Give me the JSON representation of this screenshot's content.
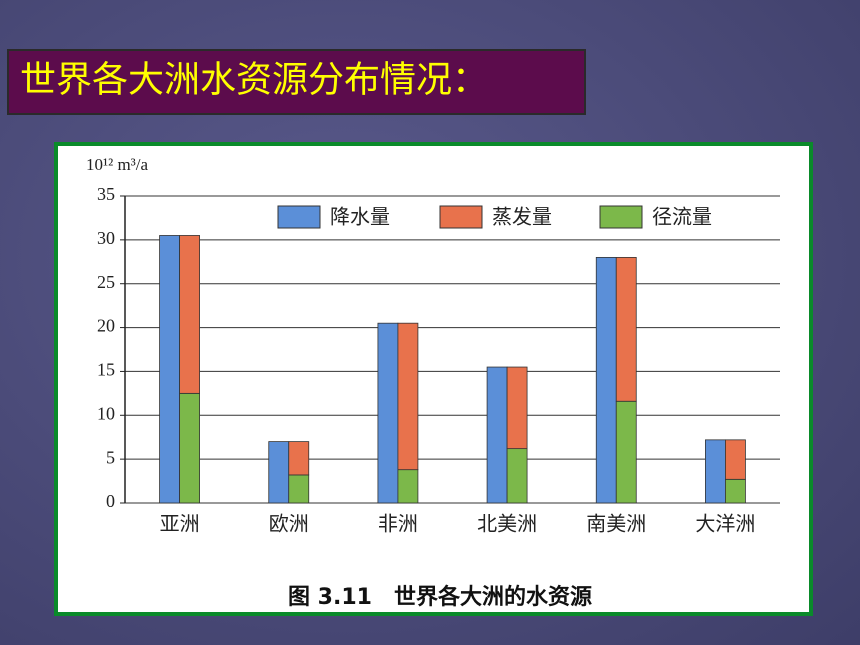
{
  "title": "世界各大洲水资源分布情况：",
  "chart_data": {
    "type": "bar",
    "y_label": "10¹² m³/a",
    "caption": "图 3.11　世界各大洲的水资源",
    "categories": [
      "亚洲",
      "欧洲",
      "非洲",
      "北美洲",
      "南美洲",
      "大洋洲"
    ],
    "series": [
      {
        "name": "降水量",
        "color": "#5b8fd8",
        "values": [
          30.5,
          7,
          20.5,
          15.5,
          28,
          7.2
        ]
      },
      {
        "name": "蒸发量",
        "color": "#e8724c",
        "values": [
          18,
          3.8,
          16.7,
          9.3,
          16.4,
          4.5
        ]
      },
      {
        "name": "径流量",
        "color": "#7cb84a",
        "values": [
          12.5,
          3.2,
          3.8,
          6.2,
          11.6,
          2.7
        ]
      }
    ],
    "ylim": [
      0,
      35
    ],
    "yticks": [
      0,
      5,
      10,
      15,
      20,
      25,
      30,
      35
    ],
    "grid": true
  }
}
